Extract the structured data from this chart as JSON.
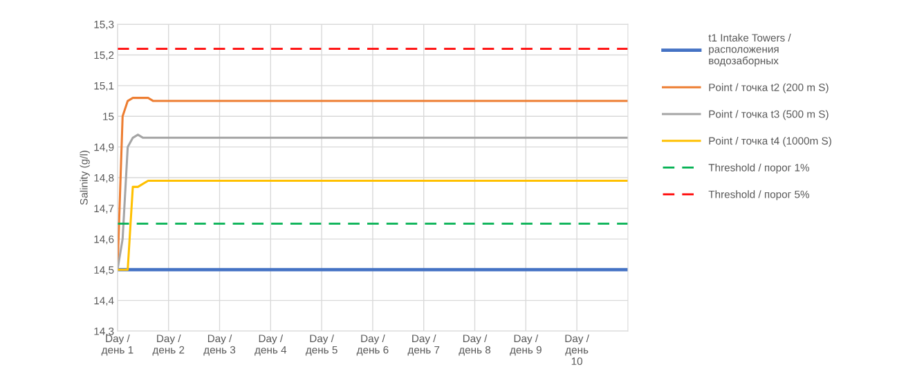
{
  "chart_data": {
    "type": "line",
    "ylabel": "Salinity (g/l)",
    "categories": [
      "Day /\nдень 1",
      null,
      null,
      null,
      null,
      null,
      null,
      null,
      null,
      null,
      "Day /\nдень 2",
      null,
      null,
      null,
      null,
      null,
      null,
      null,
      null,
      null,
      "Day /\nдень 3",
      null,
      null,
      null,
      null,
      null,
      null,
      null,
      null,
      null,
      "Day /\nдень 4",
      null,
      null,
      null,
      null,
      null,
      null,
      null,
      null,
      null,
      "Day /\nдень 5",
      null,
      null,
      null,
      null,
      null,
      null,
      null,
      null,
      null,
      "Day /\nдень 6",
      null,
      null,
      null,
      null,
      null,
      null,
      null,
      null,
      null,
      "Day /\nдень 7",
      null,
      null,
      null,
      null,
      null,
      null,
      null,
      null,
      null,
      "Day /\nдень 8",
      null,
      null,
      null,
      null,
      null,
      null,
      null,
      null,
      null,
      "Day /\nдень 9",
      null,
      null,
      null,
      null,
      null,
      null,
      null,
      null,
      null,
      "Day /\nдень\n10",
      null,
      null,
      null,
      null,
      null,
      null,
      null,
      null,
      null,
      null
    ],
    "ylim": [
      14.3,
      15.3
    ],
    "yticks": [
      {
        "value": 14.3,
        "label": "14,3"
      },
      {
        "value": 14.4,
        "label": "14,4"
      },
      {
        "value": 14.5,
        "label": "14,5"
      },
      {
        "value": 14.6,
        "label": "14,6"
      },
      {
        "value": 14.7,
        "label": "14,7"
      },
      {
        "value": 14.8,
        "label": "14,8"
      },
      {
        "value": 14.9,
        "label": "14,9"
      },
      {
        "value": 15,
        "label": "15"
      },
      {
        "value": 15.1,
        "label": "15,1"
      },
      {
        "value": 15.2,
        "label": "15,2"
      },
      {
        "value": 15.3,
        "label": "15,3"
      }
    ],
    "series": [
      {
        "name": "t1 Intake Towers /\nрасположения\nводозаборных",
        "color": "#4472c4",
        "values": [
          14.5,
          14.5,
          14.5,
          14.5,
          14.5,
          14.5,
          14.5,
          14.5,
          14.5,
          14.5,
          14.5,
          14.5,
          14.5,
          14.5,
          14.5,
          14.5,
          14.5,
          14.5,
          14.5,
          14.5,
          14.5,
          14.5,
          14.5,
          14.5,
          14.5,
          14.5,
          14.5,
          14.5,
          14.5,
          14.5,
          14.5,
          14.5,
          14.5,
          14.5,
          14.5,
          14.5,
          14.5,
          14.5,
          14.5,
          14.5,
          14.5,
          14.5,
          14.5,
          14.5,
          14.5,
          14.5,
          14.5,
          14.5,
          14.5,
          14.5,
          14.5,
          14.5,
          14.5,
          14.5,
          14.5,
          14.5,
          14.5,
          14.5,
          14.5,
          14.5,
          14.5,
          14.5,
          14.5,
          14.5,
          14.5,
          14.5,
          14.5,
          14.5,
          14.5,
          14.5,
          14.5,
          14.5,
          14.5,
          14.5,
          14.5,
          14.5,
          14.5,
          14.5,
          14.5,
          14.5,
          14.5,
          14.5,
          14.5,
          14.5,
          14.5,
          14.5,
          14.5,
          14.5,
          14.5,
          14.5,
          14.5,
          14.5,
          14.5,
          14.5,
          14.5,
          14.5,
          14.5,
          14.5,
          14.5,
          14.5,
          14.5
        ]
      },
      {
        "name": "Point / точка t2 (200 m S)",
        "color": "#ed7d31",
        "values": [
          14.5,
          15.0,
          15.05,
          15.06,
          15.06,
          15.06,
          15.06,
          15.05,
          15.05,
          15.05,
          15.05,
          15.05,
          15.05,
          15.05,
          15.05,
          15.05,
          15.05,
          15.05,
          15.05,
          15.05,
          15.05,
          15.05,
          15.05,
          15.05,
          15.05,
          15.05,
          15.05,
          15.05,
          15.05,
          15.05,
          15.05,
          15.05,
          15.05,
          15.05,
          15.05,
          15.05,
          15.05,
          15.05,
          15.05,
          15.05,
          15.05,
          15.05,
          15.05,
          15.05,
          15.05,
          15.05,
          15.05,
          15.05,
          15.05,
          15.05,
          15.05,
          15.05,
          15.05,
          15.05,
          15.05,
          15.05,
          15.05,
          15.05,
          15.05,
          15.05,
          15.05,
          15.05,
          15.05,
          15.05,
          15.05,
          15.05,
          15.05,
          15.05,
          15.05,
          15.05,
          15.05,
          15.05,
          15.05,
          15.05,
          15.05,
          15.05,
          15.05,
          15.05,
          15.05,
          15.05,
          15.05,
          15.05,
          15.05,
          15.05,
          15.05,
          15.05,
          15.05,
          15.05,
          15.05,
          15.05,
          15.05,
          15.05,
          15.05,
          15.05,
          15.05,
          15.05,
          15.05,
          15.05,
          15.05,
          15.05,
          15.05
        ]
      },
      {
        "name": "Point / точка t3 (500 m S)",
        "color": "#a5a5a5",
        "values": [
          14.5,
          14.6,
          14.9,
          14.93,
          14.94,
          14.93,
          14.93,
          14.93,
          14.93,
          14.93,
          14.93,
          14.93,
          14.93,
          14.93,
          14.93,
          14.93,
          14.93,
          14.93,
          14.93,
          14.93,
          14.93,
          14.93,
          14.93,
          14.93,
          14.93,
          14.93,
          14.93,
          14.93,
          14.93,
          14.93,
          14.93,
          14.93,
          14.93,
          14.93,
          14.93,
          14.93,
          14.93,
          14.93,
          14.93,
          14.93,
          14.93,
          14.93,
          14.93,
          14.93,
          14.93,
          14.93,
          14.93,
          14.93,
          14.93,
          14.93,
          14.93,
          14.93,
          14.93,
          14.93,
          14.93,
          14.93,
          14.93,
          14.93,
          14.93,
          14.93,
          14.93,
          14.93,
          14.93,
          14.93,
          14.93,
          14.93,
          14.93,
          14.93,
          14.93,
          14.93,
          14.93,
          14.93,
          14.93,
          14.93,
          14.93,
          14.93,
          14.93,
          14.93,
          14.93,
          14.93,
          14.93,
          14.93,
          14.93,
          14.93,
          14.93,
          14.93,
          14.93,
          14.93,
          14.93,
          14.93,
          14.93,
          14.93,
          14.93,
          14.93,
          14.93,
          14.93,
          14.93,
          14.93,
          14.93,
          14.93,
          14.93
        ]
      },
      {
        "name": "Point / точка t4 (1000m S)",
        "color": "#ffc000",
        "values": [
          14.5,
          14.5,
          14.5,
          14.77,
          14.77,
          14.78,
          14.79,
          14.79,
          14.79,
          14.79,
          14.79,
          14.79,
          14.79,
          14.79,
          14.79,
          14.79,
          14.79,
          14.79,
          14.79,
          14.79,
          14.79,
          14.79,
          14.79,
          14.79,
          14.79,
          14.79,
          14.79,
          14.79,
          14.79,
          14.79,
          14.79,
          14.79,
          14.79,
          14.79,
          14.79,
          14.79,
          14.79,
          14.79,
          14.79,
          14.79,
          14.79,
          14.79,
          14.79,
          14.79,
          14.79,
          14.79,
          14.79,
          14.79,
          14.79,
          14.79,
          14.79,
          14.79,
          14.79,
          14.79,
          14.79,
          14.79,
          14.79,
          14.79,
          14.79,
          14.79,
          14.79,
          14.79,
          14.79,
          14.79,
          14.79,
          14.79,
          14.79,
          14.79,
          14.79,
          14.79,
          14.79,
          14.79,
          14.79,
          14.79,
          14.79,
          14.79,
          14.79,
          14.79,
          14.79,
          14.79,
          14.79,
          14.79,
          14.79,
          14.79,
          14.79,
          14.79,
          14.79,
          14.79,
          14.79,
          14.79,
          14.79,
          14.79,
          14.79,
          14.79,
          14.79,
          14.79,
          14.79,
          14.79,
          14.79,
          14.79,
          14.79
        ]
      }
    ],
    "ref_lines": [
      {
        "axis": "y",
        "value": 14.65,
        "label": "Threshold / порог 1%",
        "color": "#00b050",
        "line_style": "dashed"
      },
      {
        "axis": "y",
        "value": 15.22,
        "label": "Threshold / порог 5%",
        "color": "#ff0000",
        "line_style": "dashed"
      }
    ],
    "grid": true,
    "legend": "right",
    "line_style": "solid"
  }
}
